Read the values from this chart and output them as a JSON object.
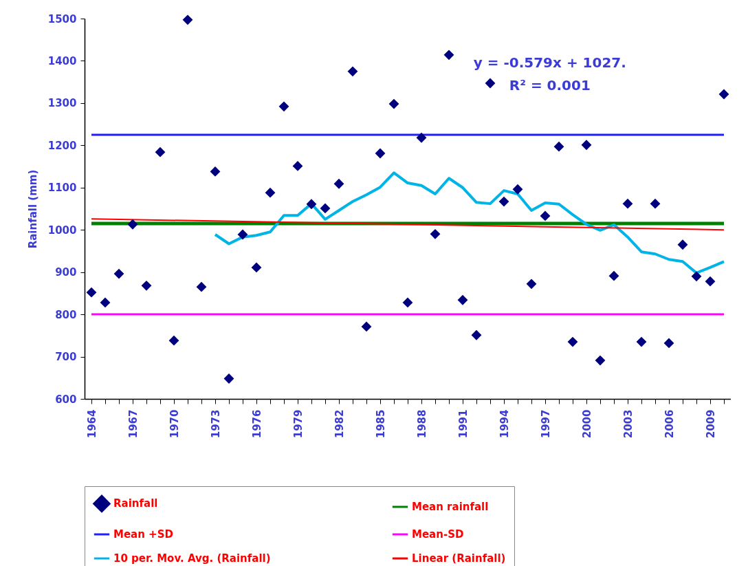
{
  "chart_data": {
    "type": "scatter",
    "ylabel": "Rainfall (mm)",
    "categories": [
      "1964",
      null,
      null,
      "1967",
      null,
      null,
      "1970",
      null,
      null,
      "1973",
      null,
      null,
      "1976",
      null,
      null,
      "1979",
      null,
      null,
      "1982",
      null,
      null,
      "1985",
      null,
      null,
      "1988",
      null,
      null,
      "1991",
      null,
      null,
      "1994",
      null,
      null,
      "1997",
      null,
      null,
      "2000",
      null,
      null,
      "2003",
      null,
      null,
      "2006",
      null,
      null,
      "2009",
      null
    ],
    "ylim": [
      600,
      1500
    ],
    "yticks": [
      600,
      700,
      800,
      900,
      1000,
      1100,
      1200,
      1300,
      1400,
      1500
    ],
    "grid": false,
    "legend": "bottom",
    "annotations": [
      "y = -0.579x + 1027.",
      "R² = 0.001"
    ],
    "series": [
      {
        "name": "Rainfall",
        "marker": "diamond",
        "color": "#00007f",
        "values": [
          852,
          828,
          896,
          1013,
          868,
          1184,
          738,
          1497,
          865,
          1138,
          648,
          989,
          911,
          1088,
          1292,
          1151,
          1061,
          1051,
          1109,
          1375,
          771,
          1181,
          1298,
          828,
          1218,
          990,
          1414,
          834,
          751,
          1347,
          1067,
          1096,
          872,
          1033,
          1197,
          735,
          1201,
          691,
          891,
          1062,
          735,
          1062,
          732,
          965,
          890,
          878,
          1321
        ]
      },
      {
        "name": "Mean rainfall",
        "type": "line",
        "color": "#008000",
        "values": [
          1015,
          1015,
          1015,
          1015,
          1015,
          1015,
          1015,
          1015,
          1015,
          1015,
          1015,
          1015,
          1015,
          1015,
          1015,
          1015,
          1015,
          1015,
          1015,
          1015,
          1015,
          1015,
          1015,
          1015,
          1015,
          1015,
          1015,
          1015,
          1015,
          1015,
          1015,
          1015,
          1015,
          1015,
          1015,
          1015,
          1015,
          1015,
          1015,
          1015,
          1015,
          1015,
          1015,
          1015,
          1015,
          1015,
          1015
        ]
      },
      {
        "name": "Mean +SD",
        "type": "line",
        "color": "#1f1fff",
        "values": [
          1225,
          1225,
          1225,
          1225,
          1225,
          1225,
          1225,
          1225,
          1225,
          1225,
          1225,
          1225,
          1225,
          1225,
          1225,
          1225,
          1225,
          1225,
          1225,
          1225,
          1225,
          1225,
          1225,
          1225,
          1225,
          1225,
          1225,
          1225,
          1225,
          1225,
          1225,
          1225,
          1225,
          1225,
          1225,
          1225,
          1225,
          1225,
          1225,
          1225,
          1225,
          1225,
          1225,
          1225,
          1225,
          1225,
          1225
        ]
      },
      {
        "name": "Mean-SD",
        "type": "line",
        "color": "#ff00ff",
        "values": [
          800,
          800,
          800,
          800,
          800,
          800,
          800,
          800,
          800,
          800,
          800,
          800,
          800,
          800,
          800,
          800,
          800,
          800,
          800,
          800,
          800,
          800,
          800,
          800,
          800,
          800,
          800,
          800,
          800,
          800,
          800,
          800,
          800,
          800,
          800,
          800,
          800,
          800,
          800,
          800,
          800,
          800,
          800,
          800,
          800,
          800,
          800
        ]
      },
      {
        "name": "10 per. Mov. Avg. (Rainfall)",
        "type": "line",
        "color": "#00b4e6",
        "values": [
          null,
          null,
          null,
          null,
          null,
          null,
          null,
          null,
          null,
          989,
          967,
          983,
          987,
          995,
          1034,
          1034,
          1062,
          1025,
          1046,
          1067,
          1083,
          1101,
          1135,
          1111,
          1105,
          1085,
          1122,
          1100,
          1065,
          1062,
          1093,
          1085,
          1046,
          1064,
          1061,
          1036,
          1013,
          999,
          1012,
          983,
          948,
          943,
          930,
          925,
          898,
          911,
          925
        ]
      },
      {
        "name": "Linear (Rainfall)",
        "type": "line",
        "color": "#ff0000",
        "values": [
          1026,
          null,
          null,
          null,
          null,
          null,
          null,
          null,
          null,
          null,
          null,
          null,
          null,
          null,
          null,
          null,
          null,
          null,
          null,
          null,
          null,
          null,
          null,
          null,
          null,
          null,
          null,
          null,
          null,
          null,
          null,
          null,
          null,
          null,
          null,
          null,
          null,
          null,
          null,
          null,
          null,
          null,
          null,
          null,
          null,
          null,
          1000
        ]
      }
    ]
  }
}
